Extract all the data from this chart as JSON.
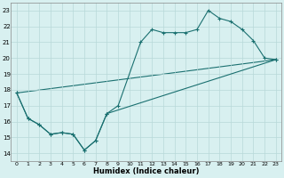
{
  "xlabel": "Humidex (Indice chaleur)",
  "bg_color": "#d8f0f0",
  "grid_color": "#b8d8d8",
  "line_color": "#1a7070",
  "xlim": [
    -0.5,
    23.5
  ],
  "ylim": [
    13.5,
    23.5
  ],
  "yticks": [
    14,
    15,
    16,
    17,
    18,
    19,
    20,
    21,
    22,
    23
  ],
  "xticks": [
    0,
    1,
    2,
    3,
    4,
    5,
    6,
    7,
    8,
    9,
    10,
    11,
    12,
    13,
    14,
    15,
    16,
    17,
    18,
    19,
    20,
    21,
    22,
    23
  ],
  "line1_x": [
    0,
    1,
    2,
    3,
    4,
    5,
    6,
    7,
    8,
    9,
    11,
    12,
    13,
    14,
    15,
    16,
    17,
    18,
    19,
    20,
    21,
    22,
    23
  ],
  "line1_y": [
    17.8,
    16.2,
    15.8,
    15.2,
    15.3,
    15.2,
    14.2,
    14.8,
    16.5,
    17.0,
    21.0,
    21.8,
    21.6,
    21.6,
    21.6,
    21.8,
    23.0,
    22.5,
    22.3,
    21.8,
    21.1,
    20.0,
    19.9
  ],
  "line2_x": [
    0,
    1,
    2,
    3,
    4,
    5,
    6,
    7,
    8,
    23
  ],
  "line2_y": [
    17.8,
    16.2,
    15.8,
    15.2,
    15.3,
    15.2,
    14.2,
    14.8,
    16.5,
    19.9
  ],
  "line3_x": [
    0,
    23
  ],
  "line3_y": [
    17.8,
    19.9
  ],
  "figsize": [
    3.2,
    2.0
  ],
  "dpi": 100
}
